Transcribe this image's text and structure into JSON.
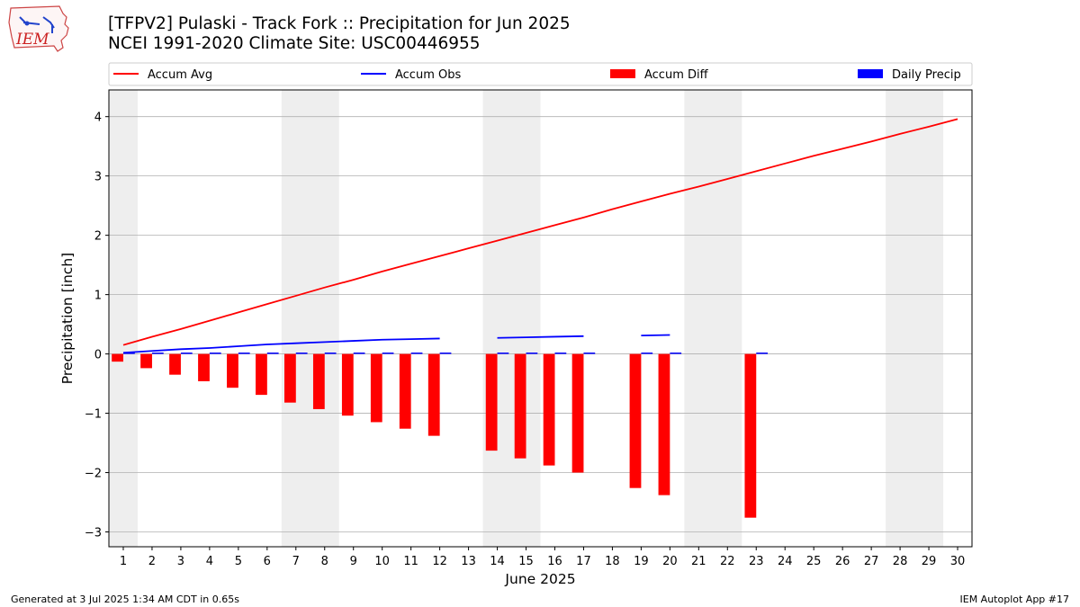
{
  "logo_text": "IEM",
  "title_line1": "[TFPV2] Pulaski - Track Fork :: Precipitation for Jun 2025",
  "title_line2": "NCEI 1991-2020 Climate Site: USC00446955",
  "footer_left": "Generated at 3 Jul 2025 1:34 AM CDT in 0.65s",
  "footer_right": "IEM Autoplot App #17",
  "colors": {
    "accum_avg": "#ff0000",
    "accum_obs": "#0000ff",
    "accum_diff": "#ff0000",
    "daily_precip": "#0000ff",
    "weekend_shade": "#eeeeee",
    "grid": "#b0b0b0"
  },
  "chart_data": {
    "type": "bar",
    "xlabel": "June 2025",
    "ylabel": "Precipitation [inch]",
    "ylim": [
      -3.25,
      4.45
    ],
    "yticks": [
      -3,
      -2,
      -1,
      0,
      1,
      2,
      3,
      4
    ],
    "x": [
      1,
      2,
      3,
      4,
      5,
      6,
      7,
      8,
      9,
      10,
      11,
      12,
      13,
      14,
      15,
      16,
      17,
      18,
      19,
      20,
      21,
      22,
      23,
      24,
      25,
      26,
      27,
      28,
      29,
      30
    ],
    "xlim": [
      0.5,
      30.5
    ],
    "grid": "horizontal",
    "legend_position": "top",
    "legend": [
      "Accum Avg",
      "Accum Obs",
      "Accum Diff",
      "Daily Precip"
    ],
    "weekend_spans": [
      [
        0.5,
        1.5
      ],
      [
        6.5,
        8.5
      ],
      [
        13.5,
        15.5
      ],
      [
        20.5,
        22.5
      ],
      [
        27.5,
        29.5
      ]
    ],
    "series": [
      {
        "name": "Accum Avg",
        "type": "line",
        "values": [
          0.15,
          0.29,
          0.42,
          0.56,
          0.7,
          0.84,
          0.98,
          1.12,
          1.25,
          1.39,
          1.52,
          1.65,
          1.78,
          1.91,
          2.04,
          2.17,
          2.3,
          2.44,
          2.57,
          2.7,
          2.82,
          2.95,
          3.08,
          3.21,
          3.34,
          3.46,
          3.58,
          3.71,
          3.83,
          3.96
        ]
      },
      {
        "name": "Accum Obs",
        "type": "line",
        "values": [
          0.02,
          0.05,
          0.08,
          0.1,
          0.13,
          0.16,
          0.18,
          0.2,
          0.22,
          0.24,
          0.25,
          0.26,
          null,
          0.27,
          0.28,
          0.29,
          0.3,
          null,
          0.31,
          0.32,
          null,
          null,
          null,
          null,
          null,
          null,
          null,
          null,
          null,
          null
        ]
      },
      {
        "name": "Accum Diff",
        "type": "bar",
        "values": [
          -0.13,
          -0.24,
          -0.35,
          -0.46,
          -0.57,
          -0.69,
          -0.82,
          -0.93,
          -1.04,
          -1.15,
          -1.26,
          -1.38,
          null,
          -1.63,
          -1.76,
          -1.88,
          -2.0,
          null,
          -2.26,
          -2.38,
          null,
          null,
          -2.76,
          null,
          null,
          null,
          null,
          null,
          null,
          null
        ]
      },
      {
        "name": "Daily Precip",
        "type": "bar",
        "values": [
          0.01,
          0.02,
          0.02,
          0.02,
          0.02,
          0.02,
          0.02,
          0.02,
          0.02,
          0.02,
          0.01,
          0.01,
          null,
          0.01,
          0.01,
          0.01,
          0.01,
          null,
          0.01,
          0.01,
          null,
          null,
          0.01,
          null,
          null,
          null,
          null,
          null,
          null,
          null
        ]
      }
    ]
  }
}
